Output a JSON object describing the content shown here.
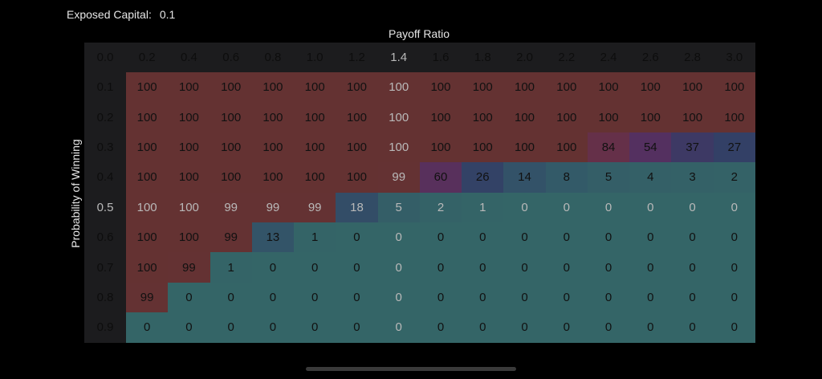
{
  "header": {
    "exposed_label": "Exposed Capital:",
    "exposed_value": "0.1"
  },
  "chart_data": {
    "type": "heatmap",
    "title": "",
    "xlabel": "Payoff Ratio",
    "ylabel": "Probability of Winning",
    "corner": "0.0",
    "x": [
      "0.2",
      "0.4",
      "0.6",
      "0.8",
      "1.0",
      "1.2",
      "1.4",
      "1.6",
      "1.8",
      "2.0",
      "2.2",
      "2.4",
      "2.6",
      "2.8",
      "3.0"
    ],
    "y": [
      "0.1",
      "0.2",
      "0.3",
      "0.4",
      "0.5",
      "0.6",
      "0.7",
      "0.8",
      "0.9"
    ],
    "values": [
      [
        100,
        100,
        100,
        100,
        100,
        100,
        100,
        100,
        100,
        100,
        100,
        100,
        100,
        100,
        100
      ],
      [
        100,
        100,
        100,
        100,
        100,
        100,
        100,
        100,
        100,
        100,
        100,
        100,
        100,
        100,
        100
      ],
      [
        100,
        100,
        100,
        100,
        100,
        100,
        100,
        100,
        100,
        100,
        100,
        84,
        54,
        37,
        27
      ],
      [
        100,
        100,
        100,
        100,
        100,
        100,
        99,
        60,
        26,
        14,
        8,
        5,
        4,
        3,
        2
      ],
      [
        100,
        100,
        99,
        99,
        99,
        18,
        5,
        2,
        1,
        0,
        0,
        0,
        0,
        0,
        0
      ],
      [
        100,
        100,
        99,
        13,
        1,
        0,
        0,
        0,
        0,
        0,
        0,
        0,
        0,
        0,
        0
      ],
      [
        100,
        99,
        1,
        0,
        0,
        0,
        0,
        0,
        0,
        0,
        0,
        0,
        0,
        0,
        0
      ],
      [
        99,
        0,
        0,
        0,
        0,
        0,
        0,
        0,
        0,
        0,
        0,
        0,
        0,
        0,
        0
      ],
      [
        0,
        0,
        0,
        0,
        0,
        0,
        0,
        0,
        0,
        0,
        0,
        0,
        0,
        0,
        0
      ]
    ],
    "highlight": {
      "row": "0.5",
      "col": "1.4"
    },
    "colors": {
      "high": "#643232",
      "low": "#346567",
      "background": "#1c1c1e"
    }
  }
}
